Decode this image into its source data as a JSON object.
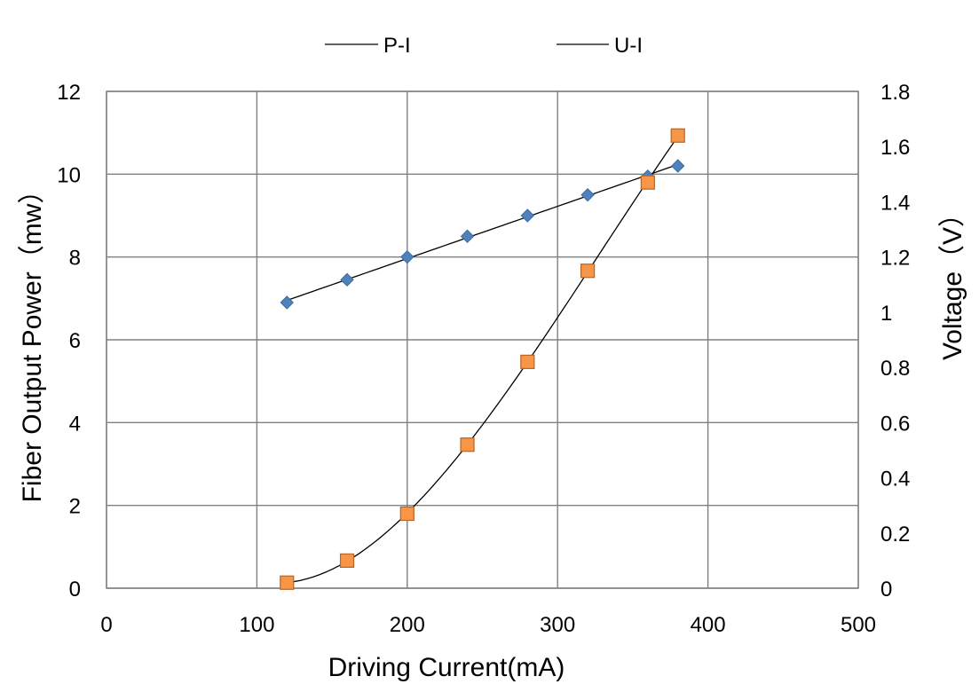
{
  "chart_data": {
    "type": "scatter",
    "xlabel": "Driving Current(mA)",
    "ylabel": "Fiber Output Power（mw）",
    "y2label": "Voltage（V）",
    "xlim": [
      0,
      500
    ],
    "ylim": [
      0,
      12
    ],
    "y2lim": [
      0,
      1.8
    ],
    "xticks": [
      "0",
      "100",
      "200",
      "300",
      "400",
      "500"
    ],
    "yticks": [
      "0",
      "2",
      "4",
      "6",
      "8",
      "10",
      "12"
    ],
    "y2ticks": [
      "0",
      "0.2",
      "0.4",
      "0.6",
      "0.8",
      "1",
      "1.2",
      "1.4",
      "1.6",
      "1.8"
    ],
    "grid": true,
    "legend_position": "top-center",
    "series": [
      {
        "name": "P-I",
        "axis": "left",
        "marker": "diamond",
        "color": "#4f81bd",
        "x": [
          120,
          160,
          200,
          240,
          280,
          320,
          360,
          380
        ],
        "y": [
          6.9,
          7.45,
          8.0,
          8.5,
          9.0,
          9.5,
          9.95,
          10.2
        ],
        "fit": "linear"
      },
      {
        "name": "U-I",
        "axis": "right",
        "marker": "square",
        "color": "#f79646",
        "x": [
          120,
          160,
          200,
          240,
          280,
          320,
          360,
          380
        ],
        "y": [
          0.02,
          0.1,
          0.27,
          0.52,
          0.82,
          1.15,
          1.47,
          1.64
        ],
        "fit": "cubic"
      }
    ]
  }
}
